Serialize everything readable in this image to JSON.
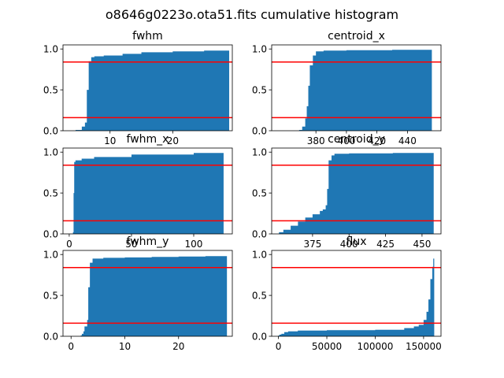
{
  "figure": {
    "suptitle": "o8646g0223o.ota51.fits cumulative histogram"
  },
  "colors": {
    "bar": "#1f77b4",
    "line": "#ff0000",
    "axis": "#000000"
  },
  "chart_data": [
    {
      "type": "area",
      "title": "fwhm",
      "xlim": [
        2.5,
        29.5
      ],
      "ylim": [
        0,
        1.05
      ],
      "xticks": [
        10,
        20
      ],
      "yticks": [
        0.0,
        0.5,
        1.0
      ],
      "hlines": [
        0.16,
        0.84
      ],
      "x": [
        2.5,
        4.5,
        5.5,
        6.0,
        6.3,
        6.6,
        7.0,
        7.5,
        9,
        12,
        15,
        20,
        25,
        29
      ],
      "y": [
        0.0,
        0.01,
        0.05,
        0.1,
        0.5,
        0.85,
        0.9,
        0.91,
        0.92,
        0.94,
        0.96,
        0.97,
        0.98,
        1.0
      ]
    },
    {
      "type": "area",
      "title": "centroid_x",
      "xlim": [
        351,
        462
      ],
      "ylim": [
        0,
        1.05
      ],
      "xticks": [
        380,
        400,
        420,
        440
      ],
      "yticks": [
        0.0,
        0.5,
        1.0
      ],
      "hlines": [
        0.16,
        0.84
      ],
      "x": [
        351,
        369,
        371,
        373,
        374,
        375,
        376,
        378,
        380,
        385,
        400,
        430,
        456
      ],
      "y": [
        0.0,
        0.01,
        0.05,
        0.15,
        0.3,
        0.55,
        0.8,
        0.92,
        0.97,
        0.98,
        0.985,
        0.99,
        1.0
      ]
    },
    {
      "type": "area",
      "title": "fwhm_x",
      "xlim": [
        -5,
        131
      ],
      "ylim": [
        0,
        1.05
      ],
      "xticks": [
        0,
        50,
        100
      ],
      "yticks": [
        0.0,
        0.5,
        1.0
      ],
      "hlines": [
        0.16,
        0.84
      ],
      "x": [
        -5,
        3,
        3.5,
        4,
        5,
        10,
        20,
        50,
        100,
        124
      ],
      "y": [
        0.0,
        0.02,
        0.5,
        0.88,
        0.9,
        0.92,
        0.94,
        0.97,
        0.99,
        1.0
      ]
    },
    {
      "type": "area",
      "title": "centroid_y",
      "xlim": [
        347,
        463
      ],
      "ylim": [
        0,
        1.05
      ],
      "xticks": [
        375,
        400,
        425,
        450
      ],
      "yticks": [
        0.0,
        0.5,
        1.0
      ],
      "hlines": [
        0.16,
        0.84
      ],
      "x": [
        347,
        352,
        355,
        360,
        365,
        370,
        375,
        380,
        382,
        384,
        385,
        386,
        388,
        390,
        400,
        430,
        458
      ],
      "y": [
        0.0,
        0.02,
        0.05,
        0.1,
        0.15,
        0.2,
        0.24,
        0.28,
        0.3,
        0.35,
        0.55,
        0.9,
        0.96,
        0.98,
        0.985,
        0.99,
        1.0
      ]
    },
    {
      "type": "area",
      "title": "fwhm_y",
      "xlim": [
        -1.5,
        30
      ],
      "ylim": [
        0,
        1.05
      ],
      "xticks": [
        0,
        10,
        20
      ],
      "yticks": [
        0.0,
        0.5,
        1.0
      ],
      "hlines": [
        0.16,
        0.84
      ],
      "x": [
        -1.5,
        1.8,
        2.0,
        2.3,
        2.5,
        3.0,
        3.2,
        3.5,
        4.0,
        6,
        10,
        15,
        20,
        25,
        29
      ],
      "y": [
        0.0,
        0.01,
        0.03,
        0.06,
        0.12,
        0.2,
        0.6,
        0.9,
        0.95,
        0.96,
        0.965,
        0.97,
        0.975,
        0.98,
        1.0
      ]
    },
    {
      "type": "area",
      "title": "flux",
      "xlim": [
        -7000,
        168000
      ],
      "ylim": [
        0,
        1.05
      ],
      "xticks": [
        0,
        50000,
        100000,
        150000
      ],
      "yticks": [
        0.0,
        0.5,
        1.0
      ],
      "hlines": [
        0.16,
        0.84
      ],
      "x": [
        -7000,
        0,
        1000,
        3000,
        6000,
        10000,
        20000,
        50000,
        100000,
        130000,
        140000,
        145000,
        150000,
        153000,
        155000,
        157000,
        159000,
        160000,
        161000
      ],
      "y": [
        0.0,
        0.01,
        0.02,
        0.03,
        0.05,
        0.06,
        0.07,
        0.075,
        0.08,
        0.1,
        0.12,
        0.14,
        0.2,
        0.3,
        0.45,
        0.7,
        0.85,
        0.95,
        1.0
      ]
    }
  ]
}
